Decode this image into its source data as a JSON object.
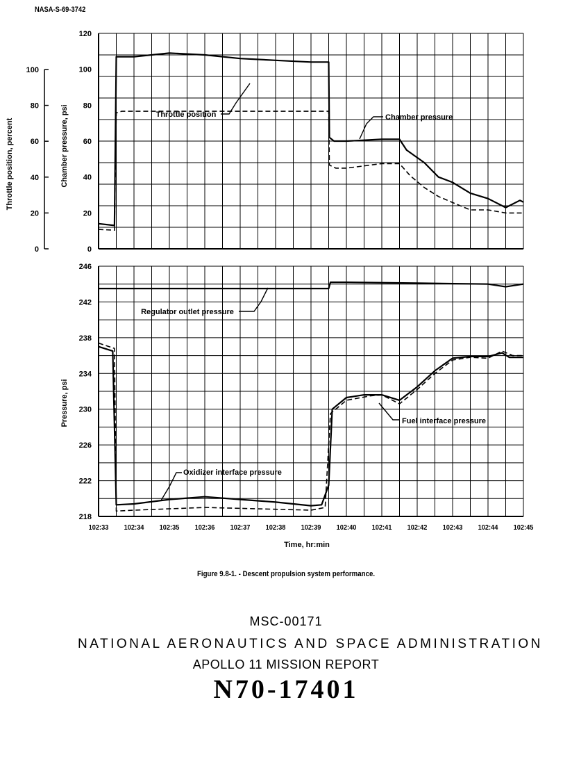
{
  "document": {
    "doc_id": "NASA-S-69-3742",
    "caption": "Figure 9.8-1. -  Descent propulsion system performance.",
    "report_number": "MSC-00171",
    "agency": "NATIONAL AERONAUTICS AND SPACE ADMINISTRATION",
    "report_title": "APOLLO 11 MISSION REPORT",
    "accession_number": "N70-17401"
  },
  "chart_data": [
    {
      "type": "line",
      "title": "",
      "xlabel": "Time, hr:min",
      "ylabel": "Chamber pressure, psi",
      "secondary_ylabel": "Throttle position, percent",
      "x_unit": "minutes after 102:33",
      "xlim": [
        0,
        12
      ],
      "ylim": [
        0,
        120
      ],
      "secondary_ylim": [
        0,
        100
      ],
      "yticks": [
        "0",
        "20",
        "40",
        "60",
        "80",
        "100",
        "120"
      ],
      "secondary_yticks": [
        "0",
        "20",
        "40",
        "60",
        "80",
        "100"
      ],
      "grid": true,
      "series": [
        {
          "name": "Chamber pressure",
          "style": "solid",
          "points": [
            [
              0.0,
              14
            ],
            [
              0.45,
              13
            ],
            [
              0.5,
              107
            ],
            [
              1.0,
              107
            ],
            [
              2.0,
              109
            ],
            [
              3.0,
              108
            ],
            [
              4.0,
              106
            ],
            [
              5.0,
              105
            ],
            [
              6.0,
              104
            ],
            [
              6.5,
              104
            ],
            [
              6.52,
              62
            ],
            [
              6.65,
              60
            ],
            [
              7.0,
              60
            ],
            [
              8.0,
              61
            ],
            [
              8.5,
              61
            ],
            [
              8.7,
              55
            ],
            [
              9.2,
              48
            ],
            [
              9.6,
              40
            ],
            [
              10.0,
              37
            ],
            [
              10.5,
              31
            ],
            [
              11.0,
              28
            ],
            [
              11.5,
              23
            ],
            [
              11.9,
              27
            ],
            [
              12.0,
              26
            ]
          ]
        },
        {
          "name": "Throttle position",
          "style": "dashed",
          "axis": "secondary",
          "points": [
            [
              0.0,
              10.8
            ],
            [
              0.45,
              10.4
            ],
            [
              0.5,
              75.8
            ],
            [
              0.65,
              76.7
            ],
            [
              6.5,
              76.7
            ],
            [
              6.52,
              46.7
            ],
            [
              6.7,
              45
            ],
            [
              7.0,
              45
            ],
            [
              8.0,
              47.5
            ],
            [
              8.5,
              47.5
            ],
            [
              8.8,
              40.8
            ],
            [
              9.2,
              34.2
            ],
            [
              9.6,
              29.2
            ],
            [
              10.0,
              25.8
            ],
            [
              10.5,
              21.7
            ],
            [
              11.0,
              21.7
            ],
            [
              11.5,
              20
            ],
            [
              12.0,
              20
            ]
          ]
        }
      ],
      "annotations": [
        "Throttle position",
        "Chamber pressure"
      ]
    },
    {
      "type": "line",
      "title": "",
      "xlabel": "Time, hr:min",
      "ylabel": "Pressure, psi",
      "x_unit": "minutes after 102:33",
      "xlim": [
        0,
        12
      ],
      "ylim": [
        218,
        246
      ],
      "yticks": [
        "218",
        "222",
        "226",
        "230",
        "234",
        "238",
        "242",
        "246"
      ],
      "x_ticklabels": [
        "102:33",
        "102:34",
        "102:35",
        "102:36",
        "102:37",
        "102:38",
        "102:39",
        "102:40",
        "102:41",
        "102:42",
        "102:43",
        "102:44",
        "102:45"
      ],
      "grid": true,
      "series": [
        {
          "name": "Regulator outlet pressure",
          "style": "solid",
          "points": [
            [
              0.0,
              243.5
            ],
            [
              6.5,
              243.5
            ],
            [
              6.55,
              244.2
            ],
            [
              7.0,
              244.2
            ],
            [
              9.0,
              244.1
            ],
            [
              11.0,
              244.0
            ],
            [
              11.5,
              243.7
            ],
            [
              12.0,
              244.0
            ]
          ]
        },
        {
          "name": "Oxidizer interface pressure",
          "style": "solid",
          "points": [
            [
              0.0,
              237.0
            ],
            [
              0.4,
              236.5
            ],
            [
              0.5,
              219.3
            ],
            [
              1.0,
              219.4
            ],
            [
              2.0,
              219.9
            ],
            [
              3.0,
              220.2
            ],
            [
              4.0,
              219.9
            ],
            [
              5.0,
              219.6
            ],
            [
              6.0,
              219.2
            ],
            [
              6.3,
              219.3
            ],
            [
              6.5,
              221.5
            ],
            [
              6.6,
              230.0
            ],
            [
              7.0,
              231.3
            ],
            [
              7.5,
              231.6
            ],
            [
              8.0,
              231.6
            ],
            [
              8.5,
              231.0
            ],
            [
              9.0,
              232.5
            ],
            [
              9.5,
              234.3
            ],
            [
              10.0,
              235.7
            ],
            [
              10.5,
              235.9
            ],
            [
              11.0,
              235.9
            ],
            [
              11.4,
              236.3
            ],
            [
              11.6,
              235.8
            ],
            [
              12.0,
              235.8
            ]
          ]
        },
        {
          "name": "Fuel interface pressure",
          "style": "dashed",
          "points": [
            [
              0.0,
              237.4
            ],
            [
              0.45,
              236.8
            ],
            [
              0.5,
              218.6
            ],
            [
              1.0,
              218.7
            ],
            [
              3.0,
              219.0
            ],
            [
              6.0,
              218.7
            ],
            [
              6.4,
              219.0
            ],
            [
              6.55,
              229.5
            ],
            [
              7.0,
              231.0
            ],
            [
              7.7,
              231.5
            ],
            [
              8.0,
              231.6
            ],
            [
              8.5,
              230.6
            ],
            [
              9.0,
              232.2
            ],
            [
              9.5,
              234.0
            ],
            [
              10.0,
              235.5
            ],
            [
              10.5,
              235.8
            ],
            [
              11.0,
              235.7
            ],
            [
              11.4,
              236.5
            ],
            [
              11.7,
              236.0
            ],
            [
              12.0,
              236.0
            ]
          ]
        }
      ],
      "annotations": [
        "Regulator outlet pressure",
        "Fuel interface pressure",
        "Oxidizer interface pressure"
      ]
    }
  ]
}
